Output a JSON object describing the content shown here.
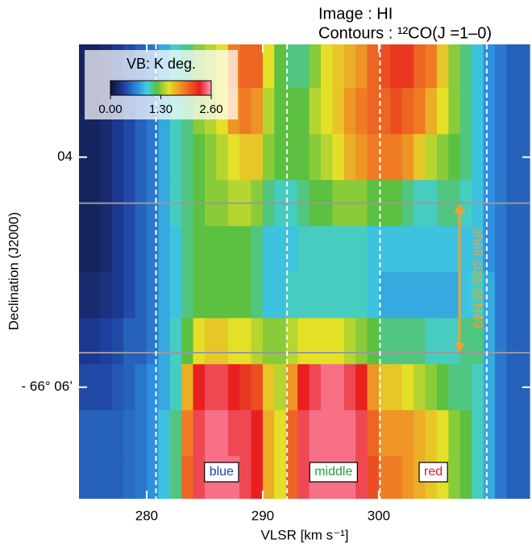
{
  "chart_data": {
    "type": "heatmap",
    "title_lines": [
      "Image : HI",
      "Contours  : ¹²CO(J =1–0)"
    ],
    "x_label": "VLSR [km s⁻¹]",
    "y_label": "Declination (J2000)",
    "xlim": [
      274.17,
      313.06
    ],
    "ylim": [
      6.97,
      3.02
    ],
    "xticks": [
      280,
      290,
      300
    ],
    "yticks": [
      {
        "value": 4,
        "label": "04"
      },
      {
        "value": 6,
        "label": "- 66° 06’"
      }
    ],
    "x": [
      274.5,
      275.5,
      276.5,
      277.5,
      278.5,
      279.5,
      280.5,
      281.5,
      282.5,
      283.5,
      284.5,
      285.5,
      286.5,
      287.5,
      288.5,
      289.5,
      290.5,
      291.5,
      292.5,
      293.5,
      294.5,
      295.5,
      296.5,
      297.5,
      298.5,
      299.5,
      300.5,
      301.5,
      302.5,
      303.5,
      304.5,
      305.5,
      306.5,
      307.5,
      308.5,
      309.5,
      310.5,
      311.5,
      312.5
    ],
    "y": [
      3.2,
      3.6,
      4.0,
      4.4,
      4.8,
      5.2,
      5.6,
      6.0,
      6.4,
      6.8
    ],
    "values": [
      [
        0.15,
        0.15,
        0.2,
        0.3,
        0.4,
        0.5,
        0.6,
        0.8,
        1.0,
        1.1,
        1.3,
        1.4,
        1.5,
        1.9,
        2.0,
        2.0,
        1.5,
        1.2,
        1.1,
        1.1,
        1.3,
        1.5,
        1.6,
        1.7,
        1.8,
        2.0,
        2.1,
        2.2,
        2.2,
        2.0,
        1.9,
        1.6,
        1.3,
        1.1,
        0.9,
        0.7,
        0.6,
        0.5,
        0.5
      ],
      [
        0.15,
        0.15,
        0.2,
        0.3,
        0.4,
        0.5,
        0.6,
        0.8,
        1.0,
        1.1,
        1.3,
        1.4,
        1.5,
        1.8,
        1.9,
        1.8,
        1.4,
        1.2,
        1.2,
        1.2,
        1.4,
        1.5,
        1.6,
        1.8,
        1.9,
        2.0,
        2.0,
        2.1,
        2.0,
        1.9,
        1.7,
        1.5,
        1.3,
        1.1,
        0.9,
        0.7,
        0.6,
        0.5,
        0.5
      ],
      [
        0.15,
        0.15,
        0.2,
        0.3,
        0.4,
        0.5,
        0.6,
        0.8,
        1.0,
        1.1,
        1.2,
        1.3,
        1.4,
        1.5,
        1.6,
        1.6,
        1.3,
        1.2,
        1.2,
        1.2,
        1.3,
        1.4,
        1.5,
        1.7,
        1.8,
        1.9,
        1.9,
        1.9,
        1.8,
        1.6,
        1.4,
        1.3,
        1.2,
        1.1,
        0.9,
        0.7,
        0.6,
        0.5,
        0.5
      ],
      [
        0.15,
        0.15,
        0.2,
        0.3,
        0.4,
        0.5,
        0.6,
        0.8,
        1.0,
        1.1,
        1.2,
        1.3,
        1.3,
        1.4,
        1.4,
        1.3,
        1.1,
        1.0,
        1.0,
        1.1,
        1.2,
        1.2,
        1.3,
        1.3,
        1.3,
        1.2,
        1.2,
        1.2,
        1.1,
        1.0,
        1.0,
        1.1,
        1.1,
        1.0,
        0.9,
        0.7,
        0.6,
        0.5,
        0.5
      ],
      [
        0.15,
        0.15,
        0.2,
        0.3,
        0.4,
        0.5,
        0.6,
        0.8,
        0.9,
        1.1,
        1.2,
        1.2,
        1.2,
        1.2,
        1.2,
        1.1,
        0.9,
        0.9,
        0.9,
        1.0,
        1.0,
        1.0,
        1.0,
        1.0,
        1.0,
        0.9,
        0.9,
        0.9,
        0.9,
        0.9,
        0.9,
        0.9,
        0.9,
        0.9,
        0.9,
        0.7,
        0.6,
        0.5,
        0.5
      ],
      [
        0.2,
        0.2,
        0.25,
        0.3,
        0.4,
        0.5,
        0.6,
        0.8,
        0.9,
        1.1,
        1.2,
        1.2,
        1.2,
        1.2,
        1.2,
        1.1,
        0.9,
        0.9,
        1.0,
        1.0,
        1.0,
        1.0,
        1.0,
        1.0,
        1.0,
        0.9,
        0.8,
        0.8,
        0.8,
        0.8,
        0.8,
        0.8,
        0.8,
        0.9,
        1.0,
        0.8,
        0.6,
        0.5,
        0.5
      ],
      [
        0.3,
        0.3,
        0.35,
        0.4,
        0.5,
        0.5,
        0.6,
        0.8,
        1.0,
        1.2,
        1.5,
        1.6,
        1.6,
        1.5,
        1.5,
        1.4,
        1.3,
        1.3,
        1.4,
        1.5,
        1.5,
        1.5,
        1.5,
        1.4,
        1.3,
        1.2,
        1.1,
        1.1,
        1.1,
        1.1,
        1.0,
        1.0,
        1.0,
        1.1,
        1.1,
        0.8,
        0.6,
        0.5,
        0.5
      ],
      [
        0.4,
        0.4,
        0.4,
        0.45,
        0.5,
        0.6,
        0.7,
        0.8,
        1.0,
        1.7,
        2.3,
        2.4,
        2.4,
        2.3,
        2.2,
        2.1,
        1.6,
        1.4,
        1.8,
        2.3,
        2.4,
        2.5,
        2.5,
        2.4,
        2.3,
        1.8,
        1.6,
        1.6,
        1.5,
        1.4,
        1.3,
        1.2,
        1.1,
        1.1,
        1.0,
        0.8,
        0.6,
        0.5,
        0.5
      ],
      [
        0.5,
        0.5,
        0.5,
        0.5,
        0.55,
        0.6,
        0.7,
        0.9,
        1.1,
        1.9,
        2.4,
        2.5,
        2.5,
        2.4,
        2.4,
        2.3,
        1.7,
        1.5,
        2.0,
        2.4,
        2.5,
        2.5,
        2.5,
        2.5,
        2.4,
        2.0,
        1.8,
        1.8,
        1.8,
        1.7,
        1.6,
        1.5,
        1.3,
        1.2,
        1.0,
        0.8,
        0.6,
        0.5,
        0.5
      ],
      [
        0.5,
        0.5,
        0.5,
        0.5,
        0.55,
        0.6,
        0.7,
        0.9,
        1.1,
        2.0,
        2.4,
        2.5,
        2.5,
        2.5,
        2.4,
        2.3,
        1.7,
        1.5,
        2.0,
        2.4,
        2.5,
        2.5,
        2.5,
        2.5,
        2.4,
        2.1,
        1.9,
        1.9,
        1.8,
        1.7,
        1.6,
        1.5,
        1.3,
        1.2,
        1.0,
        0.8,
        0.6,
        0.5,
        0.5
      ]
    ],
    "colormap": [
      [
        0,
        "#101030"
      ],
      [
        0.35,
        "#1f3f9f"
      ],
      [
        0.7,
        "#2f8fe0"
      ],
      [
        0.95,
        "#40d0e0"
      ],
      [
        1.2,
        "#5cc040"
      ],
      [
        1.5,
        "#e4e028"
      ],
      [
        1.85,
        "#f08824"
      ],
      [
        2.3,
        "#e82020"
      ],
      [
        2.6,
        "#ff98b8"
      ]
    ],
    "colorbar": {
      "label": "VB: K deg.",
      "lim": [
        0,
        2.6
      ],
      "ticks": [
        {
          "value": 0,
          "label": "0.00"
        },
        {
          "value": 1.3,
          "label": "1.30"
        },
        {
          "value": 2.6,
          "label": "2.60"
        }
      ]
    },
    "boundaries": [
      280.8,
      292.1,
      300.1,
      309.3
    ],
    "regions": [
      {
        "label": "blue",
        "color": "#1f3fb0"
      },
      {
        "label": "middle",
        "color": "#2e9e3a"
      },
      {
        "label": "red",
        "color": "#e02020"
      }
    ],
    "shell": {
      "label": "shell size of N49",
      "dec": [
        4.4,
        5.7
      ],
      "color": "#f0a030"
    }
  }
}
